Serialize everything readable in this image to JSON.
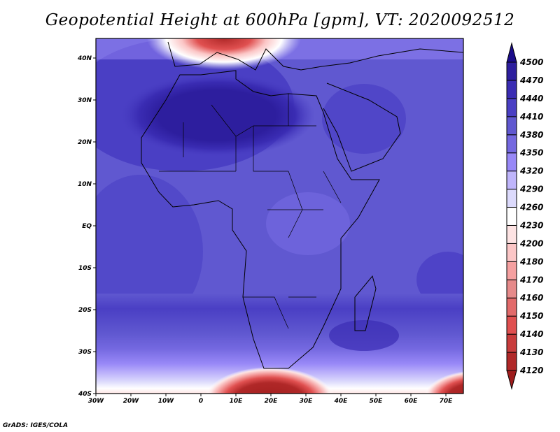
{
  "title": "Geopotential Height at 600hPa [gpm], VT: 2020092512",
  "footer": "GrADS: IGES/COLA",
  "map": {
    "variable": "Geopotential Height",
    "level": "600hPa",
    "units": "gpm",
    "valid_time": "2020092512",
    "lat_labels": [
      "40N",
      "30N",
      "20N",
      "10N",
      "EQ",
      "10S",
      "20S",
      "30S",
      "40S"
    ],
    "lat_values": [
      40,
      30,
      20,
      10,
      0,
      -10,
      -20,
      -30,
      -40
    ],
    "lon_labels": [
      "30W",
      "20W",
      "10W",
      "0",
      "10E",
      "20E",
      "30E",
      "40E",
      "50E",
      "60E",
      "70E"
    ],
    "lon_values": [
      -30,
      -20,
      -10,
      0,
      10,
      20,
      30,
      40,
      50,
      60,
      70
    ]
  },
  "colorbar": {
    "levels": [
      4120,
      4130,
      4140,
      4150,
      4160,
      4170,
      4180,
      4200,
      4230,
      4260,
      4290,
      4320,
      4350,
      4380,
      4410,
      4440,
      4470,
      4500
    ],
    "colors": [
      "#b02828",
      "#c83c3c",
      "#e05050",
      "#e26a6a",
      "#e68a8a",
      "#f5a0a0",
      "#fbc6c6",
      "#fde3e3",
      "#ffffff",
      "#dcdafc",
      "#bfb5fb",
      "#9888f7",
      "#7468e0",
      "#6058d0",
      "#4a3fc4",
      "#3a2cb3",
      "#2d1e9e"
    ],
    "over_color": "#1b0c8a",
    "under_color": "#9e1c1c"
  }
}
